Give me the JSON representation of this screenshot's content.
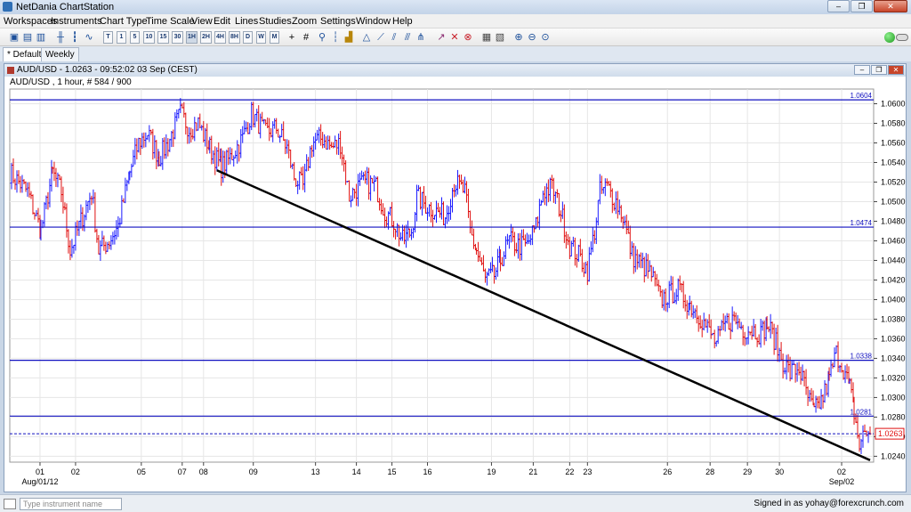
{
  "window": {
    "title": "NetDania ChartStation",
    "min": "–",
    "max": "❐",
    "close": "✕"
  },
  "menu": [
    "Workspaces",
    "Instruments",
    "Chart Type",
    "Time Scale",
    "View",
    "Edit",
    "Lines",
    "Studies",
    "Zoom",
    "Settings",
    "Window",
    "Help"
  ],
  "toolbar": {
    "timescales": [
      "T",
      "1",
      "5",
      "10",
      "15",
      "30",
      "1H",
      "2H",
      "4H",
      "8H",
      "D",
      "W",
      "M"
    ],
    "active_timescale": "1H"
  },
  "tabs": [
    {
      "label": "* Default",
      "active": true
    },
    {
      "label": "Weekly",
      "active": false
    }
  ],
  "chart_window": {
    "title": "AUD/USD - 1.0263 - 09:52:02  03 Sep (CEST)",
    "info": "AUD/USD , 1 hour, # 584 / 900"
  },
  "chart_data": {
    "type": "bar",
    "instrument": "AUD/USD",
    "interval": "1 hour",
    "ylim": [
      1.0234,
      1.0615
    ],
    "y_ticks": [
      "1.0600",
      "1.0580",
      "1.0560",
      "1.0540",
      "1.0520",
      "1.0500",
      "1.0480",
      "1.0460",
      "1.0440",
      "1.0420",
      "1.0400",
      "1.0380",
      "1.0360",
      "1.0340",
      "1.0320",
      "1.0300",
      "1.0280",
      "1.0260",
      "1.0240"
    ],
    "x_ticks": [
      {
        "label": "01",
        "slot": 34
      },
      {
        "label": "02",
        "slot": 74
      },
      {
        "label": "05",
        "slot": 148
      },
      {
        "label": "07",
        "slot": 194
      },
      {
        "label": "08",
        "slot": 218
      },
      {
        "label": "09",
        "slot": 274
      },
      {
        "label": "13",
        "slot": 344
      },
      {
        "label": "14",
        "slot": 390
      },
      {
        "label": "15",
        "slot": 430
      },
      {
        "label": "16",
        "slot": 470
      },
      {
        "label": "19",
        "slot": 542
      },
      {
        "label": "21",
        "slot": 589
      },
      {
        "label": "22",
        "slot": 630
      },
      {
        "label": "23",
        "slot": 650
      },
      {
        "label": "26",
        "slot": 740
      },
      {
        "label": "28",
        "slot": 788
      },
      {
        "label": "29",
        "slot": 830
      },
      {
        "label": "30",
        "slot": 866
      },
      {
        "label": "02",
        "slot": 936
      }
    ],
    "x_sub_labels": [
      {
        "label": "Aug/01/12",
        "slot": 34
      },
      {
        "label": "Sep/02",
        "slot": 936
      }
    ],
    "horizontal_lines": [
      {
        "value": 1.0604,
        "label": "1.0604"
      },
      {
        "value": 1.0474,
        "label": "1.0474"
      },
      {
        "value": 1.0338,
        "label": "1.0338"
      },
      {
        "value": 1.0281,
        "label": "1.0281"
      }
    ],
    "last_price": {
      "value": 1.0263,
      "label": "1.0263"
    },
    "trendline": {
      "start": {
        "slot": 233,
        "value": 1.0532
      },
      "end": {
        "slot": 968,
        "value": 1.0236
      }
    },
    "anchors": [
      [
        0,
        1.053
      ],
      [
        20,
        1.051
      ],
      [
        35,
        1.047
      ],
      [
        48,
        1.053
      ],
      [
        58,
        1.051
      ],
      [
        68,
        1.045
      ],
      [
        80,
        1.048
      ],
      [
        92,
        1.051
      ],
      [
        100,
        1.045
      ],
      [
        112,
        1.046
      ],
      [
        122,
        1.0475
      ],
      [
        135,
        1.053
      ],
      [
        145,
        1.056
      ],
      [
        155,
        1.057
      ],
      [
        168,
        1.0545
      ],
      [
        178,
        1.056
      ],
      [
        192,
        1.059
      ],
      [
        202,
        1.0575
      ],
      [
        212,
        1.058
      ],
      [
        225,
        1.0555
      ],
      [
        238,
        1.0535
      ],
      [
        248,
        1.0545
      ],
      [
        262,
        1.0565
      ],
      [
        272,
        1.059
      ],
      [
        280,
        1.058
      ],
      [
        288,
        1.057
      ],
      [
        300,
        1.0575
      ],
      [
        312,
        1.0555
      ],
      [
        320,
        1.0525
      ],
      [
        330,
        1.0515
      ],
      [
        340,
        1.056
      ],
      [
        352,
        1.0565
      ],
      [
        362,
        1.0555
      ],
      [
        372,
        1.056
      ],
      [
        382,
        1.0505
      ],
      [
        392,
        1.0515
      ],
      [
        402,
        1.052
      ],
      [
        412,
        1.0515
      ],
      [
        422,
        1.049
      ],
      [
        432,
        1.048
      ],
      [
        442,
        1.046
      ],
      [
        452,
        1.047
      ],
      [
        458,
        1.0505
      ],
      [
        470,
        1.0495
      ],
      [
        480,
        1.049
      ],
      [
        490,
        1.0485
      ],
      [
        500,
        1.052
      ],
      [
        512,
        1.051
      ],
      [
        518,
        1.047
      ],
      [
        525,
        1.045
      ],
      [
        535,
        1.042
      ],
      [
        545,
        1.0425
      ],
      [
        552,
        1.044
      ],
      [
        562,
        1.046
      ],
      [
        572,
        1.0455
      ],
      [
        582,
        1.0455
      ],
      [
        592,
        1.0475
      ],
      [
        600,
        1.051
      ],
      [
        610,
        1.0515
      ],
      [
        620,
        1.049
      ],
      [
        630,
        1.0455
      ],
      [
        640,
        1.0445
      ],
      [
        650,
        1.043
      ],
      [
        658,
        1.047
      ],
      [
        664,
        1.051
      ],
      [
        672,
        1.0515
      ],
      [
        682,
        1.05
      ],
      [
        690,
        1.0485
      ],
      [
        700,
        1.0445
      ],
      [
        712,
        1.0435
      ],
      [
        722,
        1.0425
      ],
      [
        732,
        1.04
      ],
      [
        742,
        1.0405
      ],
      [
        752,
        1.041
      ],
      [
        765,
        1.0395
      ],
      [
        775,
        1.0385
      ],
      [
        785,
        1.037
      ],
      [
        795,
        1.0355
      ],
      [
        805,
        1.0375
      ],
      [
        815,
        1.038
      ],
      [
        825,
        1.037
      ],
      [
        835,
        1.037
      ],
      [
        845,
        1.0365
      ],
      [
        852,
        1.0375
      ],
      [
        860,
        1.036
      ],
      [
        868,
        1.034
      ],
      [
        878,
        1.0325
      ],
      [
        888,
        1.033
      ],
      [
        898,
        1.03
      ],
      [
        905,
        1.0285
      ],
      [
        915,
        1.03
      ],
      [
        922,
        1.032
      ],
      [
        930,
        1.0345
      ],
      [
        938,
        1.033
      ],
      [
        945,
        1.031
      ],
      [
        950,
        1.0285
      ],
      [
        956,
        1.025
      ],
      [
        962,
        1.0265
      ],
      [
        968,
        1.0263
      ]
    ]
  },
  "statusbar": {
    "instrument_placeholder": "Type instrument name",
    "signed_in": "Signed in as yohay@forexcrunch.com"
  }
}
